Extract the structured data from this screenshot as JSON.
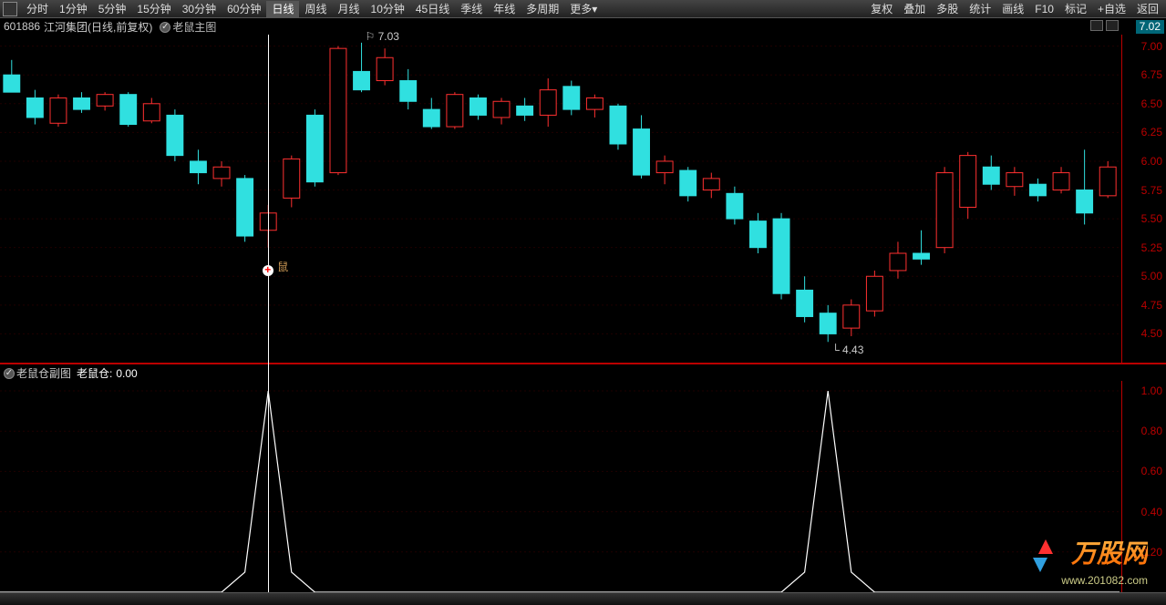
{
  "toolbar": {
    "left": [
      "分时",
      "1分钟",
      "5分钟",
      "15分钟",
      "30分钟",
      "60分钟",
      "日线",
      "周线",
      "月线",
      "10分钟",
      "45日线",
      "季线",
      "年线",
      "多周期",
      "更多▾"
    ],
    "active_left_index": 6,
    "right": [
      "复权",
      "叠加",
      "多股",
      "统计",
      "画线",
      "F10",
      "标记",
      "+自选",
      "返回"
    ]
  },
  "header": {
    "code": "601886",
    "name": "江河集团(日线,前复权)",
    "indicator_label": "老鼠主图"
  },
  "price_tag": "7.02",
  "main": {
    "y_min": 4.25,
    "y_max": 7.1,
    "y_ticks": [
      4.5,
      4.75,
      5.0,
      5.25,
      5.5,
      5.75,
      6.0,
      6.25,
      6.5,
      6.75,
      7.0
    ],
    "grid_color": "#200000",
    "high_marker": {
      "x_idx": 15,
      "label": "7.03"
    },
    "low_marker": {
      "x_idx": 35,
      "label": "4.43"
    },
    "mouse_marker": {
      "x_idx": 11,
      "label": "鼠"
    },
    "cursor_x_idx": 11,
    "up_color": "#ff3030",
    "up_fill": "#000000",
    "down_color": "#30e0e0",
    "down_fill": "#30e0e0",
    "wick_width": 1,
    "body_width": 18,
    "candles": [
      {
        "o": 6.75,
        "h": 6.88,
        "l": 6.6,
        "c": 6.6
      },
      {
        "o": 6.55,
        "h": 6.62,
        "l": 6.32,
        "c": 6.38
      },
      {
        "o": 6.33,
        "h": 6.58,
        "l": 6.3,
        "c": 6.55
      },
      {
        "o": 6.55,
        "h": 6.6,
        "l": 6.42,
        "c": 6.45
      },
      {
        "o": 6.48,
        "h": 6.6,
        "l": 6.44,
        "c": 6.58
      },
      {
        "o": 6.58,
        "h": 6.6,
        "l": 6.3,
        "c": 6.32
      },
      {
        "o": 6.35,
        "h": 6.55,
        "l": 6.33,
        "c": 6.5
      },
      {
        "o": 6.4,
        "h": 6.45,
        "l": 6.0,
        "c": 6.05
      },
      {
        "o": 6.0,
        "h": 6.1,
        "l": 5.8,
        "c": 5.9
      },
      {
        "o": 5.85,
        "h": 6.0,
        "l": 5.78,
        "c": 5.95
      },
      {
        "o": 5.85,
        "h": 5.88,
        "l": 5.3,
        "c": 5.35
      },
      {
        "o": 5.4,
        "h": 5.62,
        "l": 5.25,
        "c": 5.55
      },
      {
        "o": 5.68,
        "h": 6.05,
        "l": 5.6,
        "c": 6.02
      },
      {
        "o": 6.4,
        "h": 6.45,
        "l": 5.78,
        "c": 5.82
      },
      {
        "o": 5.9,
        "h": 7.0,
        "l": 5.88,
        "c": 6.98
      },
      {
        "o": 6.78,
        "h": 7.03,
        "l": 6.6,
        "c": 6.62
      },
      {
        "o": 6.7,
        "h": 6.98,
        "l": 6.66,
        "c": 6.9
      },
      {
        "o": 6.7,
        "h": 6.8,
        "l": 6.45,
        "c": 6.52
      },
      {
        "o": 6.45,
        "h": 6.55,
        "l": 6.28,
        "c": 6.3
      },
      {
        "o": 6.3,
        "h": 6.6,
        "l": 6.28,
        "c": 6.58
      },
      {
        "o": 6.55,
        "h": 6.58,
        "l": 6.36,
        "c": 6.4
      },
      {
        "o": 6.38,
        "h": 6.55,
        "l": 6.32,
        "c": 6.52
      },
      {
        "o": 6.48,
        "h": 6.55,
        "l": 6.35,
        "c": 6.4
      },
      {
        "o": 6.4,
        "h": 6.72,
        "l": 6.3,
        "c": 6.62
      },
      {
        "o": 6.65,
        "h": 6.7,
        "l": 6.4,
        "c": 6.45
      },
      {
        "o": 6.45,
        "h": 6.58,
        "l": 6.38,
        "c": 6.55
      },
      {
        "o": 6.48,
        "h": 6.5,
        "l": 6.1,
        "c": 6.15
      },
      {
        "o": 6.28,
        "h": 6.4,
        "l": 5.85,
        "c": 5.88
      },
      {
        "o": 5.9,
        "h": 6.05,
        "l": 5.8,
        "c": 6.0
      },
      {
        "o": 5.92,
        "h": 5.95,
        "l": 5.65,
        "c": 5.7
      },
      {
        "o": 5.75,
        "h": 5.9,
        "l": 5.68,
        "c": 5.85
      },
      {
        "o": 5.72,
        "h": 5.78,
        "l": 5.45,
        "c": 5.5
      },
      {
        "o": 5.48,
        "h": 5.55,
        "l": 5.2,
        "c": 5.25
      },
      {
        "o": 5.5,
        "h": 5.55,
        "l": 4.8,
        "c": 4.85
      },
      {
        "o": 4.88,
        "h": 5.0,
        "l": 4.6,
        "c": 4.65
      },
      {
        "o": 4.68,
        "h": 4.75,
        "l": 4.43,
        "c": 4.5
      },
      {
        "o": 4.55,
        "h": 4.8,
        "l": 4.48,
        "c": 4.75
      },
      {
        "o": 4.7,
        "h": 5.05,
        "l": 4.65,
        "c": 5.0
      },
      {
        "o": 5.05,
        "h": 5.3,
        "l": 4.98,
        "c": 5.2
      },
      {
        "o": 5.2,
        "h": 5.4,
        "l": 5.1,
        "c": 5.15
      },
      {
        "o": 5.25,
        "h": 5.95,
        "l": 5.2,
        "c": 5.9
      },
      {
        "o": 5.6,
        "h": 6.08,
        "l": 5.5,
        "c": 6.05
      },
      {
        "o": 5.95,
        "h": 6.05,
        "l": 5.75,
        "c": 5.8
      },
      {
        "o": 5.78,
        "h": 5.95,
        "l": 5.7,
        "c": 5.9
      },
      {
        "o": 5.8,
        "h": 5.85,
        "l": 5.65,
        "c": 5.7
      },
      {
        "o": 5.75,
        "h": 5.95,
        "l": 5.72,
        "c": 5.9
      },
      {
        "o": 5.75,
        "h": 6.1,
        "l": 5.45,
        "c": 5.55
      },
      {
        "o": 5.7,
        "h": 6.0,
        "l": 5.68,
        "c": 5.95
      }
    ]
  },
  "sub": {
    "label": "老鼠仓副图",
    "value_label": "老鼠仓:",
    "value": "0.00",
    "y_min": 0,
    "y_max": 1.05,
    "y_ticks": [
      0.2,
      0.4,
      0.6,
      0.8,
      1.0
    ],
    "line_color": "#ffffff",
    "peaks": [
      11,
      35
    ],
    "series": [
      0,
      0,
      0,
      0,
      0,
      0,
      0,
      0,
      0,
      0,
      0.1,
      1,
      0.1,
      0,
      0,
      0,
      0,
      0,
      0,
      0,
      0,
      0,
      0,
      0,
      0,
      0,
      0,
      0,
      0,
      0,
      0,
      0,
      0,
      0,
      0.1,
      1,
      0.1,
      0,
      0,
      0,
      0,
      0,
      0,
      0,
      0,
      0,
      0,
      0
    ]
  },
  "logo": {
    "text": "万股网",
    "sub": "www.201082.com",
    "color1": "#ff6a00",
    "color2": "#ffd080"
  }
}
